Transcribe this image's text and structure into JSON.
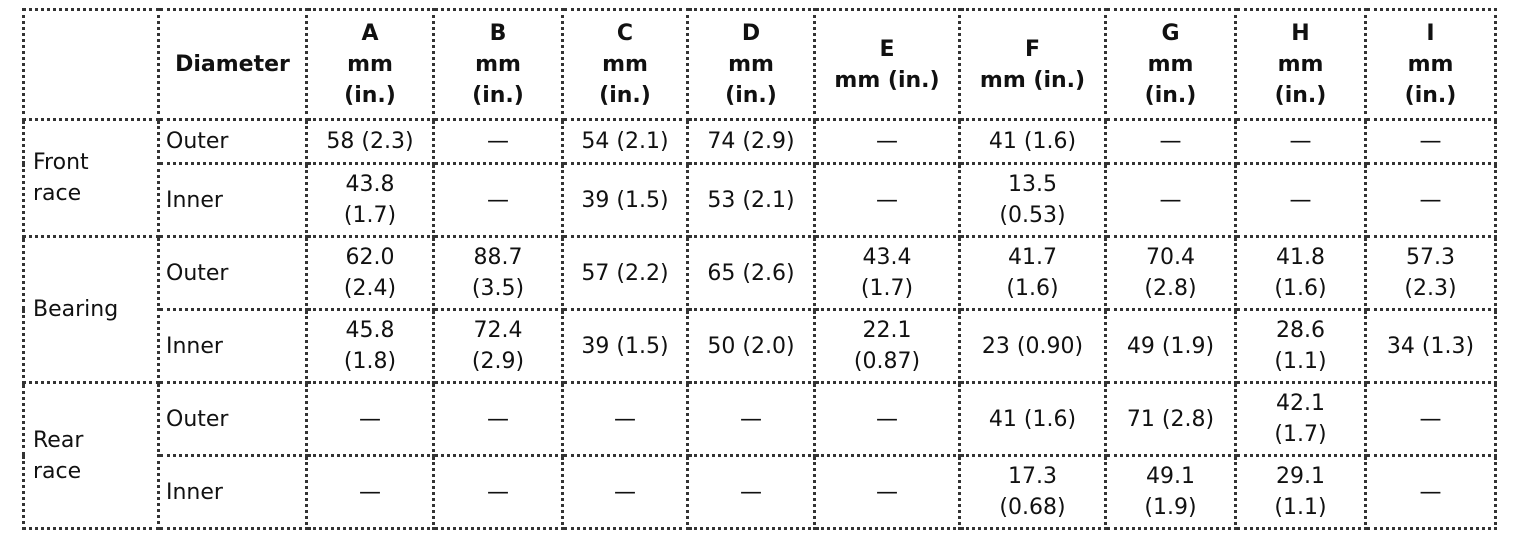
{
  "table": {
    "header": {
      "blank": "",
      "diameter": "Diameter",
      "columns": [
        "A\nmm\n(in.)",
        "B\nmm\n(in.)",
        "C\nmm\n(in.)",
        "D\nmm\n(in.)",
        "E\nmm (in.)",
        "F\nmm (in.)",
        "G\nmm\n(in.)",
        "H\nmm\n(in.)",
        "I\nmm\n(in.)"
      ]
    },
    "groups": [
      {
        "label": "Front\nrace",
        "rows": [
          {
            "diameter": "Outer",
            "cells": [
              "58 (2.3)",
              "—",
              "54 (2.1)",
              "74 (2.9)",
              "—",
              "41 (1.6)",
              "—",
              "—",
              "—"
            ]
          },
          {
            "diameter": "Inner",
            "cells": [
              "43.8\n(1.7)",
              "—",
              "39 (1.5)",
              "53 (2.1)",
              "—",
              "13.5\n(0.53)",
              "—",
              "—",
              "—"
            ]
          }
        ]
      },
      {
        "label": "Bearing",
        "rows": [
          {
            "diameter": "Outer",
            "cells": [
              "62.0\n(2.4)",
              "88.7\n(3.5)",
              "57 (2.2)",
              "65 (2.6)",
              "43.4\n(1.7)",
              "41.7\n(1.6)",
              "70.4\n(2.8)",
              "41.8\n(1.6)",
              "57.3\n(2.3)"
            ]
          },
          {
            "diameter": "Inner",
            "cells": [
              "45.8\n(1.8)",
              "72.4\n(2.9)",
              "39 (1.5)",
              "50 (2.0)",
              "22.1\n(0.87)",
              "23 (0.90)",
              "49 (1.9)",
              "28.6\n(1.1)",
              "34 (1.3)"
            ]
          }
        ]
      },
      {
        "label": "Rear\nrace",
        "rows": [
          {
            "diameter": "Outer",
            "cells": [
              "—",
              "—",
              "—",
              "—",
              "—",
              "41 (1.6)",
              "71 (2.8)",
              "42.1\n(1.7)",
              "—"
            ]
          },
          {
            "diameter": "Inner",
            "cells": [
              "—",
              "—",
              "—",
              "—",
              "—",
              "17.3\n(0.68)",
              "49.1\n(1.9)",
              "29.1\n(1.1)",
              "—"
            ]
          }
        ]
      }
    ]
  }
}
